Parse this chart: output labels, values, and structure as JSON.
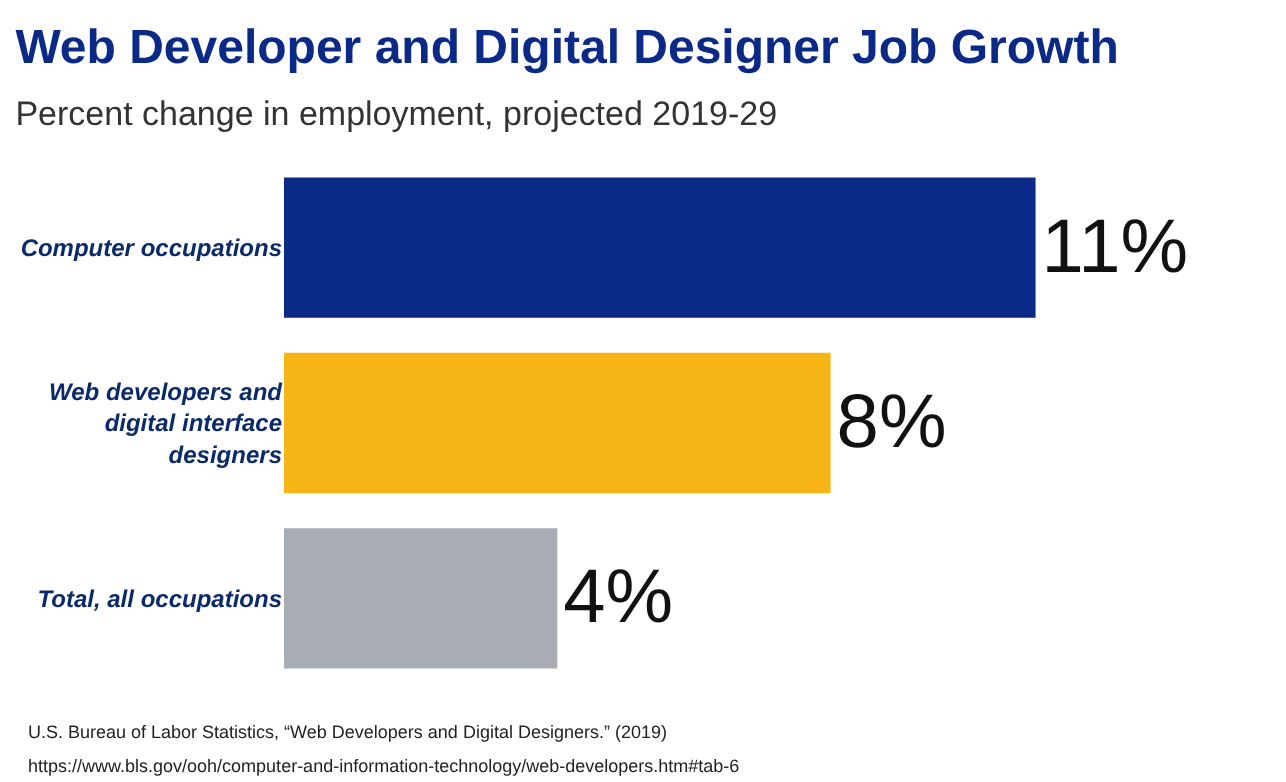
{
  "chart_data": {
    "type": "bar",
    "orientation": "horizontal",
    "title": "Web Developer and Digital Designer Job Growth",
    "subtitle": "Percent change in employment, projected 2019-29",
    "categories": [
      "Computer occupations",
      "Web developers and\ndigital interface\ndesigners",
      "Total, all occupations"
    ],
    "values": [
      11,
      8,
      4
    ],
    "colors": [
      "#0b2a87",
      "#f6b514",
      "#a8acb3"
    ],
    "value_labels": [
      "11%",
      "8%",
      "4%"
    ],
    "annotations": [
      "U.S. Bureau of Labor Statistics, “Web Developers and Digital Designers.” (2019)",
      "https://www.bls.gov/ooh/computer-and-information-technology/web-developers.htm#tab-6"
    ],
    "legend": false
  }
}
